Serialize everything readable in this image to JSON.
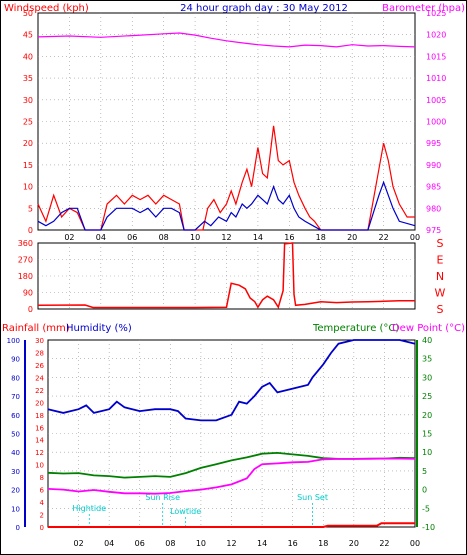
{
  "title": "24 hour graph day : 30 May 2012",
  "colors": {
    "wind_line": "#ff0000",
    "gust_line": "#0000cc",
    "barometer": "#ff00ff",
    "direction": "#ff0000",
    "humidity": "#0000cc",
    "temperature": "#008000",
    "dewpoint": "#ff00ff",
    "rainfall": "#ff0000",
    "annotation": "#00cccc"
  },
  "chart_data": [
    {
      "type": "line",
      "name": "wind-barometer",
      "left_axis_label": "Windspeed (kph)",
      "right_axis_label": "Barometer (hpa)",
      "x_ticks": [
        "02",
        "04",
        "06",
        "08",
        "10",
        "12",
        "14",
        "16",
        "18",
        "20",
        "22",
        "00"
      ],
      "left_ticks": [
        0,
        5,
        10,
        15,
        20,
        25,
        30,
        35,
        40,
        45,
        50
      ],
      "right_ticks": [
        975,
        980,
        985,
        990,
        995,
        1000,
        1005,
        1010,
        1015,
        1020,
        1025
      ],
      "ylim_left": [
        0,
        50
      ],
      "ylim_right": [
        975,
        1025
      ],
      "xlim": [
        0,
        24
      ],
      "grid": true,
      "series": [
        {
          "key": "windspeed",
          "axis": "left",
          "points": [
            [
              0,
              6
            ],
            [
              0.5,
              2
            ],
            [
              1,
              8
            ],
            [
              1.5,
              3
            ],
            [
              2,
              5
            ],
            [
              2.5,
              4
            ],
            [
              3,
              0
            ],
            [
              3.5,
              0
            ],
            [
              4,
              0
            ],
            [
              4.4,
              6
            ],
            [
              5,
              8
            ],
            [
              5.5,
              6
            ],
            [
              6,
              8
            ],
            [
              6.5,
              7
            ],
            [
              7,
              8
            ],
            [
              7.5,
              6
            ],
            [
              8,
              8
            ],
            [
              8.5,
              7
            ],
            [
              9,
              6
            ],
            [
              9.3,
              0
            ],
            [
              10,
              0
            ],
            [
              10.5,
              0
            ],
            [
              10.8,
              5
            ],
            [
              11.2,
              7
            ],
            [
              11.6,
              4
            ],
            [
              12,
              6
            ],
            [
              12.3,
              9
            ],
            [
              12.6,
              6
            ],
            [
              13,
              11
            ],
            [
              13.3,
              14
            ],
            [
              13.6,
              10
            ],
            [
              14,
              19
            ],
            [
              14.3,
              13
            ],
            [
              14.6,
              12
            ],
            [
              15,
              24
            ],
            [
              15.3,
              16
            ],
            [
              15.6,
              15
            ],
            [
              16,
              16
            ],
            [
              16.3,
              11
            ],
            [
              16.6,
              8
            ],
            [
              17,
              5
            ],
            [
              17.3,
              3
            ],
            [
              17.6,
              2
            ],
            [
              18,
              0
            ],
            [
              21,
              0
            ],
            [
              21.7,
              14
            ],
            [
              22,
              20
            ],
            [
              22.3,
              16
            ],
            [
              22.6,
              10
            ],
            [
              23,
              6
            ],
            [
              23.5,
              3
            ],
            [
              24,
              3
            ]
          ]
        },
        {
          "key": "gust",
          "axis": "left",
          "points": [
            [
              0,
              2
            ],
            [
              0.5,
              1
            ],
            [
              1,
              2
            ],
            [
              1.5,
              4
            ],
            [
              2,
              5
            ],
            [
              2.5,
              5
            ],
            [
              3,
              0
            ],
            [
              4,
              0
            ],
            [
              4.4,
              3
            ],
            [
              5,
              5
            ],
            [
              5.5,
              5
            ],
            [
              6,
              5
            ],
            [
              6.5,
              4
            ],
            [
              7,
              5
            ],
            [
              7.5,
              3
            ],
            [
              8,
              5
            ],
            [
              8.5,
              5
            ],
            [
              9,
              4
            ],
            [
              9.3,
              0
            ],
            [
              10,
              0
            ],
            [
              10.6,
              2
            ],
            [
              11,
              1
            ],
            [
              11.5,
              3
            ],
            [
              12,
              2
            ],
            [
              12.3,
              4
            ],
            [
              12.6,
              3
            ],
            [
              13,
              6
            ],
            [
              13.3,
              5
            ],
            [
              13.6,
              6
            ],
            [
              14,
              8
            ],
            [
              14.3,
              7
            ],
            [
              14.6,
              6
            ],
            [
              15,
              10
            ],
            [
              15.3,
              7
            ],
            [
              15.6,
              6
            ],
            [
              16,
              8
            ],
            [
              16.3,
              5
            ],
            [
              16.6,
              3
            ],
            [
              17,
              2
            ],
            [
              17.5,
              1
            ],
            [
              18,
              0
            ],
            [
              21,
              0
            ],
            [
              21.7,
              8
            ],
            [
              22,
              11
            ],
            [
              22.3,
              8
            ],
            [
              22.6,
              5
            ],
            [
              23,
              2
            ],
            [
              24,
              1
            ]
          ]
        },
        {
          "key": "barometer",
          "axis": "right",
          "points": [
            [
              0,
              1019.5
            ],
            [
              2,
              1019.7
            ],
            [
              4,
              1019.4
            ],
            [
              6,
              1019.8
            ],
            [
              8,
              1020.2
            ],
            [
              9,
              1020.4
            ],
            [
              10,
              1019.9
            ],
            [
              11,
              1019.2
            ],
            [
              12,
              1018.6
            ],
            [
              13,
              1018.1
            ],
            [
              14,
              1017.7
            ],
            [
              15,
              1017.4
            ],
            [
              16,
              1017.2
            ],
            [
              17,
              1017.6
            ],
            [
              18,
              1017.5
            ],
            [
              19,
              1017.2
            ],
            [
              20,
              1017.7
            ],
            [
              21,
              1017.4
            ],
            [
              22,
              1017.5
            ],
            [
              23,
              1017.3
            ],
            [
              24,
              1017.2
            ]
          ]
        }
      ]
    },
    {
      "type": "line",
      "name": "wind-direction",
      "left_ticks": [
        0,
        90,
        180,
        270,
        360
      ],
      "direction_labels": [
        "S",
        "E",
        "N",
        "W",
        "S"
      ],
      "ylim": [
        0,
        360
      ],
      "xlim": [
        0,
        24
      ],
      "grid": true,
      "series": [
        {
          "key": "direction",
          "points": [
            [
              0,
              20
            ],
            [
              3,
              22
            ],
            [
              3.5,
              8
            ],
            [
              10,
              8
            ],
            [
              12,
              10
            ],
            [
              12.3,
              140
            ],
            [
              12.8,
              130
            ],
            [
              13.2,
              110
            ],
            [
              13.5,
              60
            ],
            [
              13.8,
              40
            ],
            [
              14,
              10
            ],
            [
              14.3,
              50
            ],
            [
              14.6,
              70
            ],
            [
              15,
              50
            ],
            [
              15.3,
              10
            ],
            [
              15.6,
              100
            ],
            [
              15.7,
              355
            ],
            [
              16.2,
              360
            ],
            [
              16.3,
              80
            ],
            [
              16.4,
              20
            ],
            [
              17,
              25
            ],
            [
              18,
              40
            ],
            [
              19,
              35
            ],
            [
              20,
              38
            ],
            [
              21,
              40
            ],
            [
              22,
              42
            ],
            [
              23,
              45
            ],
            [
              24,
              45
            ]
          ]
        }
      ]
    },
    {
      "type": "line",
      "name": "temp-humidity-rain",
      "rain_label": "Rainfall (mm)",
      "humidity_label": "Humidity (%)",
      "temperature_label": "Temperature (°C)",
      "dewpoint_label": "Dew Point (°C)",
      "x_ticks": [
        "02",
        "04",
        "06",
        "08",
        "10",
        "12",
        "14",
        "16",
        "18",
        "20",
        "22",
        "00"
      ],
      "rain_ticks": [
        0,
        2,
        4,
        6,
        8,
        10,
        12,
        14,
        16,
        18,
        20,
        22,
        24,
        26,
        28,
        30
      ],
      "humidity_ticks": [
        0,
        10,
        20,
        30,
        40,
        50,
        60,
        70,
        80,
        90,
        100
      ],
      "temp_ticks": [
        -10,
        -5,
        0,
        5,
        10,
        15,
        20,
        25,
        30,
        35,
        40
      ],
      "ylim_rain": [
        0,
        30
      ],
      "ylim_humidity": [
        0,
        100
      ],
      "ylim_temp": [
        -10,
        40
      ],
      "xlim": [
        0,
        24
      ],
      "grid": true,
      "annotations": [
        {
          "label": "Hightide",
          "x": 2.7
        },
        {
          "label": "Sun Rise",
          "x": 7.5
        },
        {
          "label": "Lowtide",
          "x": 9
        },
        {
          "label": "Sun Set",
          "x": 17.3
        }
      ],
      "series": [
        {
          "key": "humidity",
          "axis": "humidity",
          "points": [
            [
              0,
              63
            ],
            [
              1,
              61
            ],
            [
              2,
              63
            ],
            [
              2.5,
              65
            ],
            [
              3,
              61
            ],
            [
              4,
              63
            ],
            [
              4.5,
              67
            ],
            [
              5,
              64
            ],
            [
              6,
              62
            ],
            [
              7,
              63
            ],
            [
              8,
              63
            ],
            [
              8.5,
              62
            ],
            [
              9,
              58
            ],
            [
              10,
              57
            ],
            [
              11,
              57
            ],
            [
              12,
              60
            ],
            [
              12.5,
              67
            ],
            [
              13,
              66
            ],
            [
              13.5,
              70
            ],
            [
              14,
              75
            ],
            [
              14.5,
              77
            ],
            [
              15,
              72
            ],
            [
              16,
              74
            ],
            [
              17,
              76
            ],
            [
              17.3,
              80
            ],
            [
              18,
              87
            ],
            [
              18.5,
              93
            ],
            [
              19,
              98
            ],
            [
              20,
              100
            ],
            [
              21,
              100
            ],
            [
              22,
              100
            ],
            [
              23,
              100
            ],
            [
              24,
              98
            ]
          ]
        },
        {
          "key": "temperature",
          "axis": "temp",
          "points": [
            [
              0,
              4.5
            ],
            [
              1,
              4.3
            ],
            [
              2,
              4.4
            ],
            [
              3,
              3.8
            ],
            [
              4,
              3.6
            ],
            [
              5,
              3.2
            ],
            [
              6,
              3.4
            ],
            [
              7,
              3.6
            ],
            [
              8,
              3.4
            ],
            [
              9,
              4.4
            ],
            [
              10,
              5.8
            ],
            [
              11,
              6.8
            ],
            [
              12,
              7.8
            ],
            [
              13,
              8.6
            ],
            [
              14,
              9.6
            ],
            [
              15,
              9.8
            ],
            [
              16,
              9.4
            ],
            [
              17,
              9.0
            ],
            [
              18,
              8.4
            ],
            [
              19,
              8.2
            ],
            [
              20,
              8.2
            ],
            [
              21,
              8.3
            ],
            [
              22,
              8.3
            ],
            [
              23,
              8.5
            ],
            [
              24,
              8.4
            ]
          ]
        },
        {
          "key": "dewpoint",
          "axis": "temp",
          "points": [
            [
              0,
              0.2
            ],
            [
              1,
              0.0
            ],
            [
              2,
              -0.5
            ],
            [
              3,
              -0.1
            ],
            [
              4,
              -0.6
            ],
            [
              5,
              -1.0
            ],
            [
              6,
              -1.0
            ],
            [
              7,
              -1.1
            ],
            [
              8,
              -0.9
            ],
            [
              9,
              -0.4
            ],
            [
              10,
              0.0
            ],
            [
              11,
              0.6
            ],
            [
              12,
              1.4
            ],
            [
              13,
              3.0
            ],
            [
              13.5,
              5.5
            ],
            [
              14,
              6.8
            ],
            [
              15,
              7.0
            ],
            [
              16,
              7.3
            ],
            [
              17,
              7.4
            ],
            [
              18,
              8.1
            ],
            [
              19,
              8.2
            ],
            [
              20,
              8.2
            ],
            [
              21,
              8.2
            ],
            [
              22,
              8.3
            ],
            [
              23,
              8.3
            ],
            [
              24,
              8.2
            ]
          ]
        },
        {
          "key": "rainfall",
          "axis": "rain",
          "points": [
            [
              0,
              0
            ],
            [
              18,
              0
            ],
            [
              18.3,
              0.2
            ],
            [
              21.5,
              0.2
            ],
            [
              21.8,
              0.6
            ],
            [
              23.8,
              0.6
            ],
            [
              24,
              0.6
            ]
          ]
        }
      ]
    }
  ]
}
